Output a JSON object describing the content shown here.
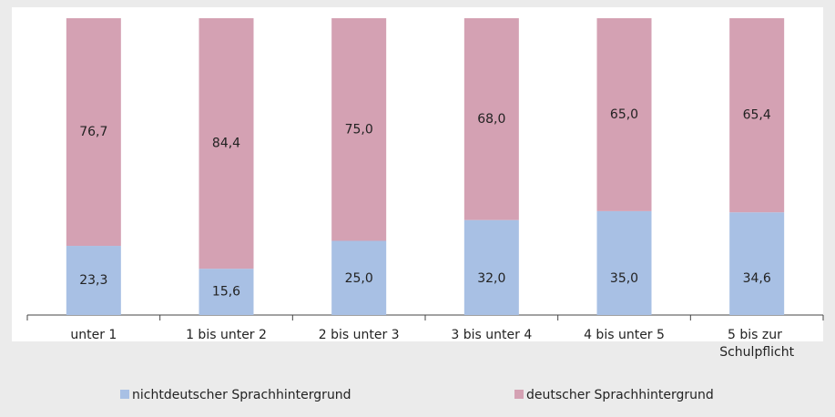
{
  "chart_data": {
    "type": "stacked_bar",
    "categories": [
      "unter 1",
      "1 bis unter 2",
      "2 bis unter 3",
      "3 bis unter 4",
      "4 bis unter 5",
      "5 bis zur Schulpflicht"
    ],
    "series": [
      {
        "name": "nichtdeutscher Sprachhintergrund",
        "color": "#a8c0e4",
        "values": [
          23.3,
          15.6,
          25.0,
          32.0,
          35.0,
          34.6
        ],
        "value_labels": [
          "23,3",
          "15,6",
          "25,0",
          "32,0",
          "35,0",
          "34,6"
        ]
      },
      {
        "name": "deutscher Sprachhintergrund",
        "color": "#d4a1b3",
        "values": [
          76.7,
          84.4,
          75.0,
          68.0,
          65.0,
          65.4
        ],
        "value_labels": [
          "76,7",
          "84,4",
          "75,0",
          "68,0",
          "65,0",
          "65,4"
        ]
      }
    ],
    "ylim": [
      0,
      100
    ],
    "legend": "bottom"
  }
}
